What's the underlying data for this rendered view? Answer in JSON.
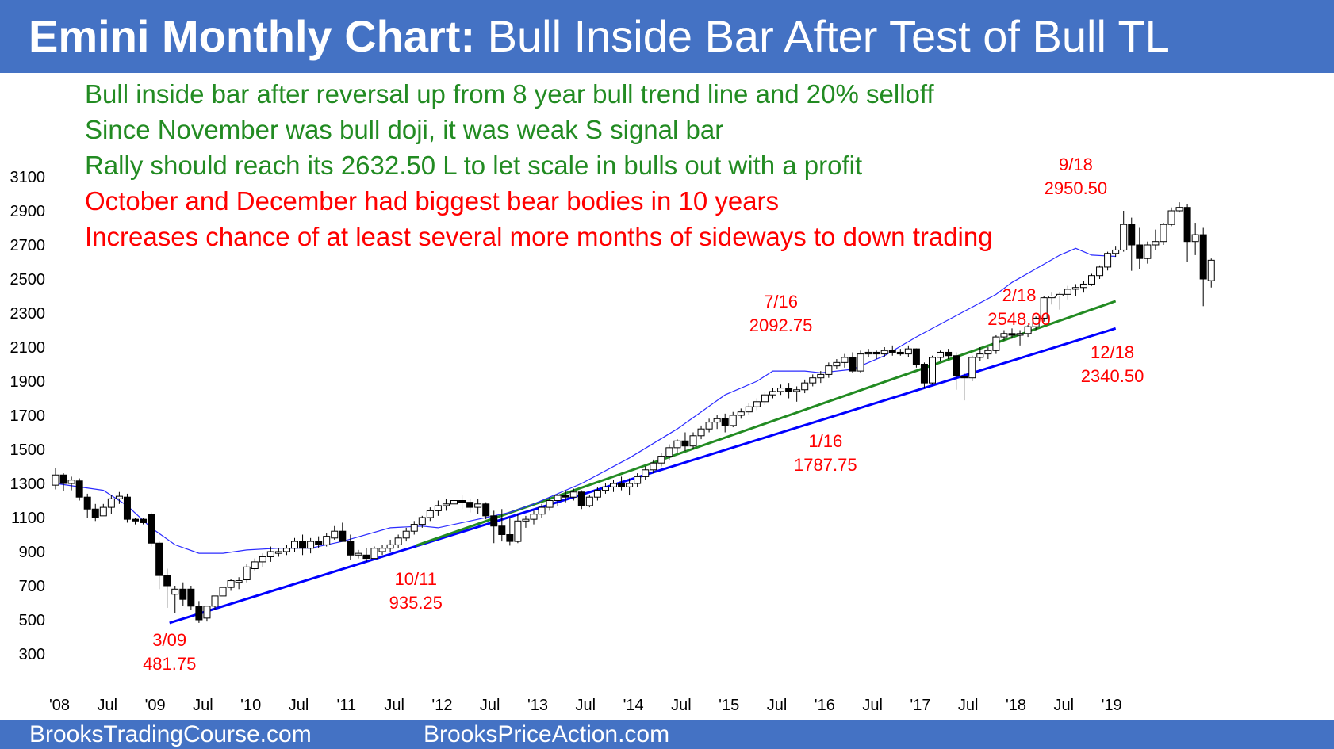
{
  "header": {
    "title_bold": "Emini Monthly Chart:",
    "title_rest": " Bull Inside Bar After Test of Bull TL",
    "background": "#4472c4"
  },
  "notes": [
    {
      "text": "Bull inside bar after reversal up from 8 year bull trend line and 20% selloff",
      "color": "#228b22"
    },
    {
      "text": "Since November was bull doji, it was weak S signal bar",
      "color": "#228b22"
    },
    {
      "text": "Rally should reach its 2632.50 L to let scale in bulls out with a profit",
      "color": "#228b22"
    },
    {
      "text": "October and December had biggest bear bodies in 10 years",
      "color": "#ff0000"
    },
    {
      "text": "Increases chance of at least several more months of sideways to down trading",
      "color": "#ff0000"
    }
  ],
  "footer": {
    "left": "BrooksTradingCourse.com",
    "right": "BrooksPriceAction.com"
  },
  "chart_data": {
    "type": "candlestick",
    "title": "",
    "ylim": [
      200,
      3200
    ],
    "y_ticks": [
      300,
      500,
      700,
      900,
      1100,
      1300,
      1500,
      1700,
      1900,
      2100,
      2300,
      2500,
      2700,
      2900,
      3100
    ],
    "x_ticks": [
      {
        "label": "'08",
        "bar": 0.5
      },
      {
        "label": "Jul",
        "bar": 6.5
      },
      {
        "label": "'09",
        "bar": 12.5
      },
      {
        "label": "Jul",
        "bar": 18.5
      },
      {
        "label": "'10",
        "bar": 24.5
      },
      {
        "label": "Jul",
        "bar": 30.5
      },
      {
        "label": "'11",
        "bar": 36.5
      },
      {
        "label": "Jul",
        "bar": 42.5
      },
      {
        "label": "'12",
        "bar": 48.5
      },
      {
        "label": "Jul",
        "bar": 54.5
      },
      {
        "label": "'13",
        "bar": 60.5
      },
      {
        "label": "Jul",
        "bar": 66.5
      },
      {
        "label": "'14",
        "bar": 72.5
      },
      {
        "label": "Jul",
        "bar": 78.5
      },
      {
        "label": "'15",
        "bar": 84.5
      },
      {
        "label": "Jul",
        "bar": 90.5
      },
      {
        "label": "'16",
        "bar": 96.5
      },
      {
        "label": "Jul",
        "bar": 102.5
      },
      {
        "label": "'17",
        "bar": 108.5
      },
      {
        "label": "Jul",
        "bar": 114.5
      },
      {
        "label": "'18",
        "bar": 120.5
      },
      {
        "label": "Jul",
        "bar": 126.5
      },
      {
        "label": "'19",
        "bar": 132.5
      }
    ],
    "moving_average_points": [
      [
        0,
        1300
      ],
      [
        6,
        1260
      ],
      [
        9,
        1170
      ],
      [
        12,
        1040
      ],
      [
        15,
        940
      ],
      [
        18,
        890
      ],
      [
        21,
        890
      ],
      [
        24,
        910
      ],
      [
        28,
        920
      ],
      [
        32,
        920
      ],
      [
        36,
        960
      ],
      [
        42,
        1040
      ],
      [
        46,
        1050
      ],
      [
        48,
        1040
      ],
      [
        52,
        1080
      ],
      [
        57,
        1130
      ],
      [
        60,
        1180
      ],
      [
        66,
        1300
      ],
      [
        72,
        1450
      ],
      [
        78,
        1620
      ],
      [
        84,
        1820
      ],
      [
        88,
        1900
      ],
      [
        90,
        1960
      ],
      [
        94,
        1960
      ],
      [
        96,
        1950
      ],
      [
        100,
        1970
      ],
      [
        104,
        2050
      ],
      [
        108,
        2160
      ],
      [
        114,
        2310
      ],
      [
        118,
        2410
      ],
      [
        120,
        2480
      ],
      [
        123,
        2560
      ],
      [
        126,
        2640
      ],
      [
        128,
        2680
      ],
      [
        130,
        2640
      ],
      [
        133,
        2632.5
      ]
    ],
    "trend_lines": [
      {
        "name": "8 year bull trend line",
        "color": "#0000ff",
        "from": [
          14.3,
          481.75
        ],
        "to": [
          133,
          2210
        ]
      },
      {
        "name": "Bull trend line",
        "color": "#228b22",
        "from": [
          45.2,
          935.25
        ],
        "to": [
          133,
          2370
        ]
      }
    ],
    "labels": [
      {
        "date": "3/09",
        "value": "481.75",
        "bar": 14.3
      },
      {
        "date": "10/11",
        "value": "935.25",
        "bar": 45.2
      },
      {
        "date": "7/16",
        "value": "2092.75",
        "bar": 91
      },
      {
        "date": "1/16",
        "value": "1787.75",
        "bar": 96.6
      },
      {
        "date": "2/18",
        "value": "2548.00",
        "bar": 120.9
      },
      {
        "date": "9/18",
        "value": "2950.50",
        "bar": 128
      },
      {
        "date": "12/18",
        "value": "2340.50",
        "bar": 131
      }
    ],
    "candles": [
      {
        "o": 1290,
        "h": 1390,
        "l": 1265,
        "c": 1350
      },
      {
        "o": 1350,
        "h": 1360,
        "l": 1255,
        "c": 1300
      },
      {
        "o": 1300,
        "h": 1340,
        "l": 1260,
        "c": 1320
      },
      {
        "o": 1315,
        "h": 1330,
        "l": 1200,
        "c": 1220
      },
      {
        "o": 1220,
        "h": 1240,
        "l": 1100,
        "c": 1150
      },
      {
        "o": 1150,
        "h": 1180,
        "l": 1080,
        "c": 1100
      },
      {
        "o": 1110,
        "h": 1180,
        "l": 1110,
        "c": 1160
      },
      {
        "o": 1160,
        "h": 1230,
        "l": 1120,
        "c": 1210
      },
      {
        "o": 1210,
        "h": 1250,
        "l": 1180,
        "c": 1225
      },
      {
        "o": 1220,
        "h": 1240,
        "l": 1070,
        "c": 1090
      },
      {
        "o": 1090,
        "h": 1100,
        "l": 1060,
        "c": 1080
      },
      {
        "o": 1090,
        "h": 1100,
        "l": 1060,
        "c": 1070
      },
      {
        "o": 1120,
        "h": 1130,
        "l": 930,
        "c": 950
      },
      {
        "o": 950,
        "h": 960,
        "l": 680,
        "c": 760
      },
      {
        "o": 760,
        "h": 800,
        "l": 570,
        "c": 700
      },
      {
        "o": 650,
        "h": 700,
        "l": 540,
        "c": 680
      },
      {
        "o": 680,
        "h": 720,
        "l": 580,
        "c": 620
      },
      {
        "o": 680,
        "h": 700,
        "l": 560,
        "c": 580
      },
      {
        "o": 580,
        "h": 610,
        "l": 481.75,
        "c": 500
      },
      {
        "o": 510,
        "h": 560,
        "l": 490,
        "c": 580
      },
      {
        "o": 580,
        "h": 640,
        "l": 560,
        "c": 640
      },
      {
        "o": 640,
        "h": 690,
        "l": 650,
        "c": 690
      },
      {
        "o": 690,
        "h": 740,
        "l": 670,
        "c": 730
      },
      {
        "o": 720,
        "h": 750,
        "l": 680,
        "c": 730
      },
      {
        "o": 735,
        "h": 830,
        "l": 720,
        "c": 810
      },
      {
        "o": 800,
        "h": 860,
        "l": 790,
        "c": 840
      },
      {
        "o": 840,
        "h": 890,
        "l": 810,
        "c": 870
      },
      {
        "o": 870,
        "h": 930,
        "l": 840,
        "c": 900
      },
      {
        "o": 890,
        "h": 920,
        "l": 870,
        "c": 900
      },
      {
        "o": 900,
        "h": 940,
        "l": 880,
        "c": 920
      },
      {
        "o": 920,
        "h": 980,
        "l": 900,
        "c": 960
      },
      {
        "o": 960,
        "h": 1000,
        "l": 880,
        "c": 920
      },
      {
        "o": 920,
        "h": 980,
        "l": 890,
        "c": 960
      },
      {
        "o": 960,
        "h": 990,
        "l": 920,
        "c": 940
      },
      {
        "o": 940,
        "h": 1010,
        "l": 930,
        "c": 990
      },
      {
        "o": 980,
        "h": 1050,
        "l": 970,
        "c": 1020
      },
      {
        "o": 1020,
        "h": 1070,
        "l": 960,
        "c": 960
      },
      {
        "o": 960,
        "h": 1000,
        "l": 850,
        "c": 880
      },
      {
        "o": 880,
        "h": 910,
        "l": 860,
        "c": 890
      },
      {
        "o": 880,
        "h": 920,
        "l": 840,
        "c": 860
      },
      {
        "o": 860,
        "h": 930,
        "l": 860,
        "c": 920
      },
      {
        "o": 900,
        "h": 940,
        "l": 880,
        "c": 920
      },
      {
        "o": 920,
        "h": 970,
        "l": 900,
        "c": 940
      },
      {
        "o": 940,
        "h": 1000,
        "l": 920,
        "c": 980
      },
      {
        "o": 980,
        "h": 1040,
        "l": 960,
        "c": 1020
      },
      {
        "o": 1020,
        "h": 1080,
        "l": 1000,
        "c": 1060
      },
      {
        "o": 1060,
        "h": 1110,
        "l": 1040,
        "c": 1100
      },
      {
        "o": 1100,
        "h": 1160,
        "l": 1080,
        "c": 1140
      },
      {
        "o": 1140,
        "h": 1200,
        "l": 1110,
        "c": 1170
      },
      {
        "o": 1170,
        "h": 1210,
        "l": 1140,
        "c": 1180
      },
      {
        "o": 1180,
        "h": 1220,
        "l": 1150,
        "c": 1200
      },
      {
        "o": 1200,
        "h": 1230,
        "l": 1150,
        "c": 1190
      },
      {
        "o": 1190,
        "h": 1210,
        "l": 1130,
        "c": 1160
      },
      {
        "o": 1160,
        "h": 1210,
        "l": 1120,
        "c": 1180
      },
      {
        "o": 1180,
        "h": 1190,
        "l": 1090,
        "c": 1110
      },
      {
        "o": 1110,
        "h": 1140,
        "l": 950,
        "c": 1050
      },
      {
        "o": 1050,
        "h": 1150,
        "l": 960,
        "c": 1000
      },
      {
        "o": 1000,
        "h": 1100,
        "l": 935.25,
        "c": 960
      },
      {
        "o": 960,
        "h": 1120,
        "l": 950,
        "c": 1080
      },
      {
        "o": 1080,
        "h": 1110,
        "l": 1040,
        "c": 1090
      },
      {
        "o": 1090,
        "h": 1140,
        "l": 1060,
        "c": 1120
      },
      {
        "o": 1120,
        "h": 1180,
        "l": 1100,
        "c": 1160
      },
      {
        "o": 1160,
        "h": 1220,
        "l": 1140,
        "c": 1200
      },
      {
        "o": 1200,
        "h": 1240,
        "l": 1170,
        "c": 1230
      },
      {
        "o": 1230,
        "h": 1260,
        "l": 1190,
        "c": 1220
      },
      {
        "o": 1220,
        "h": 1270,
        "l": 1200,
        "c": 1250
      },
      {
        "o": 1250,
        "h": 1260,
        "l": 1150,
        "c": 1170
      },
      {
        "o": 1170,
        "h": 1230,
        "l": 1160,
        "c": 1220
      },
      {
        "o": 1220,
        "h": 1280,
        "l": 1200,
        "c": 1260
      },
      {
        "o": 1260,
        "h": 1300,
        "l": 1240,
        "c": 1280
      },
      {
        "o": 1280,
        "h": 1320,
        "l": 1250,
        "c": 1300
      },
      {
        "o": 1300,
        "h": 1340,
        "l": 1260,
        "c": 1280
      },
      {
        "o": 1280,
        "h": 1330,
        "l": 1230,
        "c": 1300
      },
      {
        "o": 1300,
        "h": 1360,
        "l": 1280,
        "c": 1340
      },
      {
        "o": 1340,
        "h": 1400,
        "l": 1320,
        "c": 1380
      },
      {
        "o": 1380,
        "h": 1440,
        "l": 1360,
        "c": 1420
      },
      {
        "o": 1420,
        "h": 1480,
        "l": 1400,
        "c": 1460
      },
      {
        "o": 1460,
        "h": 1530,
        "l": 1440,
        "c": 1510
      },
      {
        "o": 1510,
        "h": 1560,
        "l": 1480,
        "c": 1550
      },
      {
        "o": 1550,
        "h": 1600,
        "l": 1490,
        "c": 1520
      },
      {
        "o": 1520,
        "h": 1600,
        "l": 1500,
        "c": 1580
      },
      {
        "o": 1580,
        "h": 1640,
        "l": 1560,
        "c": 1620
      },
      {
        "o": 1620,
        "h": 1680,
        "l": 1600,
        "c": 1660
      },
      {
        "o": 1660,
        "h": 1700,
        "l": 1620,
        "c": 1680
      },
      {
        "o": 1680,
        "h": 1710,
        "l": 1600,
        "c": 1640
      },
      {
        "o": 1640,
        "h": 1720,
        "l": 1630,
        "c": 1700
      },
      {
        "o": 1700,
        "h": 1740,
        "l": 1680,
        "c": 1720
      },
      {
        "o": 1720,
        "h": 1770,
        "l": 1700,
        "c": 1750
      },
      {
        "o": 1750,
        "h": 1800,
        "l": 1730,
        "c": 1780
      },
      {
        "o": 1780,
        "h": 1840,
        "l": 1760,
        "c": 1820
      },
      {
        "o": 1820,
        "h": 1860,
        "l": 1800,
        "c": 1840
      },
      {
        "o": 1840,
        "h": 1880,
        "l": 1820,
        "c": 1860
      },
      {
        "o": 1860,
        "h": 1890,
        "l": 1800,
        "c": 1840
      },
      {
        "o": 1840,
        "h": 1870,
        "l": 1780,
        "c": 1850
      },
      {
        "o": 1850,
        "h": 1910,
        "l": 1830,
        "c": 1890
      },
      {
        "o": 1890,
        "h": 1940,
        "l": 1870,
        "c": 1920
      },
      {
        "o": 1920,
        "h": 1960,
        "l": 1890,
        "c": 1940
      },
      {
        "o": 1940,
        "h": 2010,
        "l": 1920,
        "c": 1990
      },
      {
        "o": 1990,
        "h": 2030,
        "l": 1970,
        "c": 2010
      },
      {
        "o": 2010,
        "h": 2060,
        "l": 1980,
        "c": 2040
      },
      {
        "o": 2040,
        "h": 2070,
        "l": 1950,
        "c": 1960
      },
      {
        "o": 1960,
        "h": 2080,
        "l": 1950,
        "c": 2060
      },
      {
        "o": 2060,
        "h": 2090,
        "l": 2040,
        "c": 2070
      },
      {
        "o": 2070,
        "h": 2080,
        "l": 2030,
        "c": 2060
      },
      {
        "o": 2060,
        "h": 2100,
        "l": 2040,
        "c": 2080
      },
      {
        "o": 2080,
        "h": 2110,
        "l": 2050,
        "c": 2070
      },
      {
        "o": 2070,
        "h": 2090,
        "l": 2050,
        "c": 2060
      },
      {
        "o": 2060,
        "h": 2110,
        "l": 2040,
        "c": 2090
      },
      {
        "o": 2090,
        "h": 2092.75,
        "l": 1980,
        "c": 2000
      },
      {
        "o": 2000,
        "h": 2010,
        "l": 1860,
        "c": 1890
      },
      {
        "o": 1890,
        "h": 2050,
        "l": 1880,
        "c": 2040
      },
      {
        "o": 2040,
        "h": 2080,
        "l": 2020,
        "c": 2070
      },
      {
        "o": 2070,
        "h": 2090,
        "l": 2030,
        "c": 2050
      },
      {
        "o": 2050,
        "h": 2070,
        "l": 1850,
        "c": 1930
      },
      {
        "o": 1930,
        "h": 1950,
        "l": 1787.75,
        "c": 1920
      },
      {
        "o": 1920,
        "h": 2050,
        "l": 1900,
        "c": 2040
      },
      {
        "o": 2040,
        "h": 2100,
        "l": 2020,
        "c": 2060
      },
      {
        "o": 2060,
        "h": 2100,
        "l": 2030,
        "c": 2080
      },
      {
        "o": 2080,
        "h": 2170,
        "l": 2060,
        "c": 2160
      },
      {
        "o": 2160,
        "h": 2200,
        "l": 2140,
        "c": 2180
      },
      {
        "o": 2180,
        "h": 2210,
        "l": 2150,
        "c": 2170
      },
      {
        "o": 2170,
        "h": 2200,
        "l": 2110,
        "c": 2180
      },
      {
        "o": 2180,
        "h": 2230,
        "l": 2160,
        "c": 2220
      },
      {
        "o": 2220,
        "h": 2280,
        "l": 2200,
        "c": 2270
      },
      {
        "o": 2270,
        "h": 2400,
        "l": 2250,
        "c": 2390
      },
      {
        "o": 2390,
        "h": 2420,
        "l": 2350,
        "c": 2400
      },
      {
        "o": 2400,
        "h": 2420,
        "l": 2320,
        "c": 2410
      },
      {
        "o": 2410,
        "h": 2460,
        "l": 2380,
        "c": 2440
      },
      {
        "o": 2440,
        "h": 2470,
        "l": 2400,
        "c": 2450
      },
      {
        "o": 2450,
        "h": 2490,
        "l": 2420,
        "c": 2470
      },
      {
        "o": 2470,
        "h": 2530,
        "l": 2460,
        "c": 2520
      },
      {
        "o": 2520,
        "h": 2580,
        "l": 2500,
        "c": 2570
      },
      {
        "o": 2570,
        "h": 2660,
        "l": 2550,
        "c": 2650
      },
      {
        "o": 2650,
        "h": 2690,
        "l": 2630,
        "c": 2670
      },
      {
        "o": 2670,
        "h": 2900,
        "l": 2660,
        "c": 2820
      },
      {
        "o": 2820,
        "h": 2860,
        "l": 2548,
        "c": 2700
      },
      {
        "o": 2700,
        "h": 2800,
        "l": 2560,
        "c": 2620
      },
      {
        "o": 2620,
        "h": 2720,
        "l": 2590,
        "c": 2700
      },
      {
        "o": 2700,
        "h": 2790,
        "l": 2670,
        "c": 2720
      },
      {
        "o": 2720,
        "h": 2830,
        "l": 2700,
        "c": 2820
      },
      {
        "o": 2820,
        "h": 2920,
        "l": 2810,
        "c": 2900
      },
      {
        "o": 2900,
        "h": 2950.5,
        "l": 2890,
        "c": 2920
      },
      {
        "o": 2920,
        "h": 2940,
        "l": 2600,
        "c": 2720
      },
      {
        "o": 2720,
        "h": 2830,
        "l": 2640,
        "c": 2760
      },
      {
        "o": 2760,
        "h": 2800,
        "l": 2340.5,
        "c": 2500
      },
      {
        "o": 2490,
        "h": 2620,
        "l": 2450,
        "c": 2610
      }
    ]
  }
}
